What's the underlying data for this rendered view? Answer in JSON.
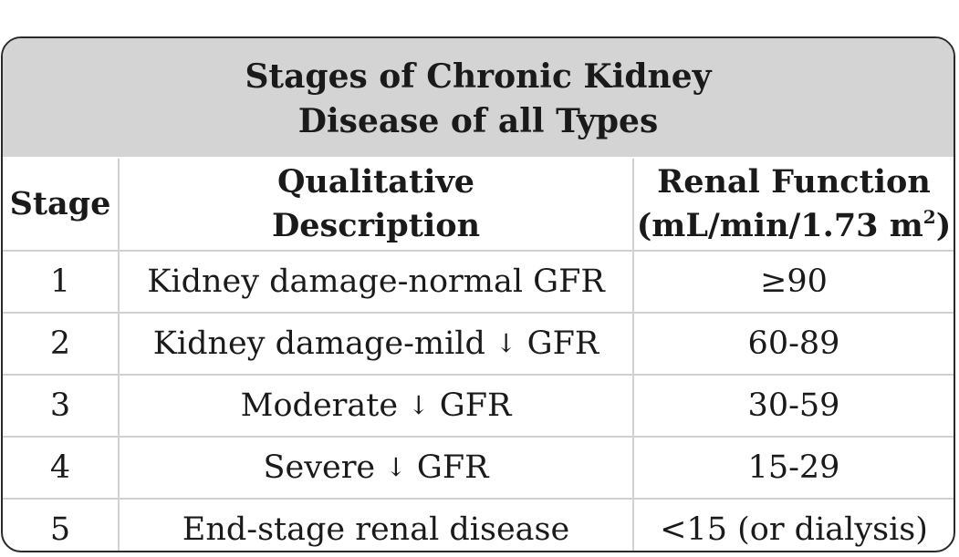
{
  "table": {
    "title_line1": "Stages of Chronic Kidney",
    "title_line2": "Disease of all Types",
    "headers": {
      "stage": "Stage",
      "description_line1": "Qualitative",
      "description_line2": "Description",
      "function_line1": "Renal Function",
      "function_line2_prefix": "(mL/min/1.73 m",
      "function_line2_sup": "2",
      "function_line2_suffix": ")"
    },
    "rows": [
      {
        "stage": "1",
        "description": "Kidney damage-normal GFR",
        "function": "≥90"
      },
      {
        "stage": "2",
        "description_before": "Kidney damage-mild ",
        "description_arrow": "↓",
        "description_after": " GFR",
        "function": "60-89"
      },
      {
        "stage": "3",
        "description_before": "Moderate ",
        "description_arrow": "↓",
        "description_after": " GFR",
        "function": "30-59"
      },
      {
        "stage": "4",
        "description_before": "Severe ",
        "description_arrow": "↓",
        "description_after": " GFR",
        "function": "15-29"
      },
      {
        "stage": "5",
        "description": "End-stage renal disease",
        "function": "<15 (or dialysis)"
      }
    ]
  }
}
